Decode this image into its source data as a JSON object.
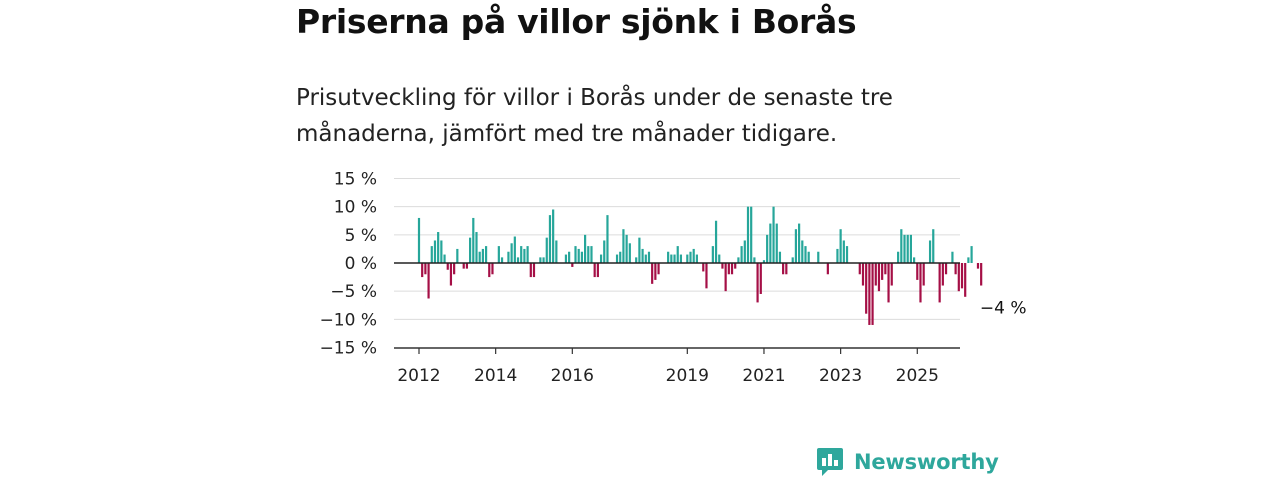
{
  "title": "Priserna på villor sjönk i Borås",
  "subtitle": "Prisutveckling för villor i Borås under de senaste tre månaderna, jämfört med tre månader tidigare.",
  "brand": {
    "name": "Newsworthy",
    "icon": "bar-chart-speech-bubble-icon",
    "color": "#2ea79c"
  },
  "chart_data": {
    "type": "bar",
    "ylim": [
      -15,
      15
    ],
    "xlim": [
      2011.5,
      2026.0
    ],
    "yticks": [
      15,
      10,
      5,
      0,
      -5,
      -10,
      -15
    ],
    "ytick_labels": [
      "15 %",
      "10 %",
      "5 %",
      "0 %",
      "−5 %",
      "−10 %",
      "−15 %"
    ],
    "xticks": [
      2012,
      2014,
      2016,
      2019,
      2021,
      2023,
      2025
    ],
    "xtick_labels": [
      "2012",
      "2014",
      "2016",
      "2019",
      "2021",
      "2023",
      "2025"
    ],
    "colors": {
      "positive": "#26a69a",
      "negative": "#a50f46"
    },
    "grid": true,
    "x_start_year": 2012,
    "values": [
      8.0,
      -2.5,
      -2.0,
      -6.3,
      3.0,
      4.0,
      5.5,
      4.0,
      1.5,
      -1.2,
      -4.0,
      -2.0,
      2.5,
      0.0,
      -1.0,
      -1.0,
      4.5,
      8.0,
      5.5,
      2.0,
      2.5,
      3.0,
      -2.5,
      -2.0,
      0.0,
      3.0,
      1.0,
      0.0,
      2.0,
      3.5,
      4.7,
      1.0,
      3.0,
      2.5,
      3.0,
      -2.5,
      -2.5,
      0.0,
      1.0,
      1.0,
      4.5,
      8.5,
      9.5,
      4.0,
      0.0,
      0.0,
      1.5,
      2.0,
      -0.7,
      3.0,
      2.5,
      2.0,
      5.0,
      3.0,
      3.0,
      -2.5,
      -2.5,
      1.5,
      4.0,
      8.5,
      0.0,
      0.0,
      1.5,
      2.0,
      6.0,
      5.0,
      3.5,
      0.0,
      1.0,
      4.5,
      2.5,
      1.5,
      2.0,
      -3.7,
      -3.0,
      -2.0,
      0.0,
      0.0,
      2.0,
      1.5,
      1.5,
      3.0,
      1.5,
      0.0,
      1.5,
      2.0,
      2.5,
      1.5,
      0.0,
      -1.5,
      -4.5,
      0.0,
      3.0,
      7.5,
      1.5,
      -1.0,
      -5.0,
      -2.0,
      -2.0,
      -1.0,
      1.0,
      3.0,
      4.0,
      10.0,
      10.0,
      1.0,
      -7.0,
      -5.5,
      0.5,
      5.0,
      7.0,
      10.0,
      7.0,
      2.0,
      -2.0,
      -2.0,
      0.0,
      1.0,
      6.0,
      7.0,
      4.0,
      3.0,
      2.0,
      0.0,
      0.0,
      2.0,
      0.0,
      0.0,
      -2.0,
      0.0,
      0.0,
      2.5,
      6.0,
      4.0,
      3.0,
      0.0,
      0.0,
      0.0,
      -2.0,
      -4.0,
      -9.0,
      -11.0,
      -11.0,
      -4.0,
      -5.0,
      -3.0,
      -2.0,
      -7.0,
      -4.0,
      0.0,
      2.0,
      6.0,
      5.0,
      5.0,
      5.0,
      1.0,
      -3.0,
      -7.0,
      -4.0,
      0.0,
      4.0,
      6.0,
      0.0,
      -7.0,
      -4.0,
      -2.0,
      0.0,
      2.0,
      -2.0,
      -5.0,
      -4.5,
      -6.0,
      1.0,
      3.0,
      0.0,
      -1.0,
      -4.0
    ],
    "annotation": {
      "text": "−4 %"
    }
  }
}
